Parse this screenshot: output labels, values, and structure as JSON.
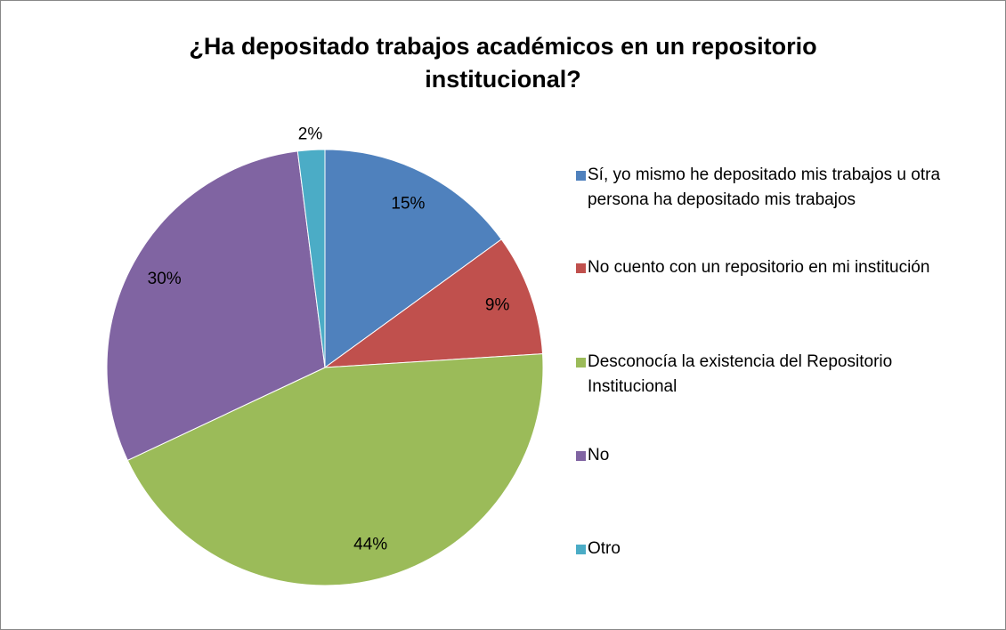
{
  "chart_data": {
    "type": "pie",
    "title": "¿Ha depositado trabajos académicos en un repositorio institucional?",
    "categories": [
      "Sí, yo mismo he depositado mis trabajos u otra persona ha depositado mis trabajos",
      "No cuento con un repositorio en mi institución",
      "Desconocía la existencia del Repositorio Institucional",
      "No",
      "Otro"
    ],
    "values": [
      15,
      9,
      44,
      30,
      2
    ],
    "value_labels": [
      "15%",
      "9%",
      "44%",
      "30%",
      "2%"
    ],
    "colors": [
      "#4f81bd",
      "#c0504d",
      "#9bbb59",
      "#8064a2",
      "#4bacc6"
    ],
    "legend": "right"
  }
}
